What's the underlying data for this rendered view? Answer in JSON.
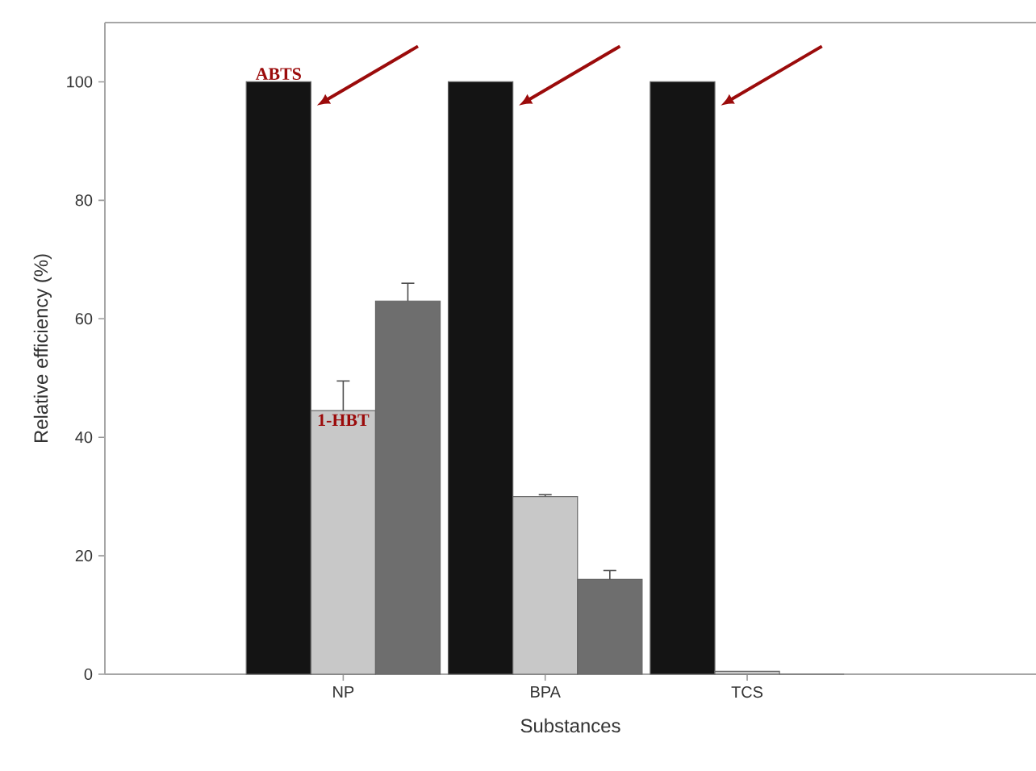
{
  "chart_data": {
    "type": "bar",
    "xlabel": "Substances",
    "ylabel": "Relative efficiency (%)",
    "categories": [
      "NP",
      "BPA",
      "TCS"
    ],
    "series": [
      {
        "name": "ABTS",
        "color": "#141414",
        "values": [
          100,
          100,
          100
        ]
      },
      {
        "name": "1-HBT",
        "color": "#c8c8c8",
        "values": [
          44.5,
          30,
          0.5
        ],
        "errors": [
          5,
          0.3,
          null
        ]
      },
      {
        "color": "#6e6e6e",
        "values": [
          63,
          16,
          0
        ],
        "errors": [
          3,
          1.5,
          null
        ]
      }
    ],
    "ylim": [
      0,
      110
    ],
    "yticks": [
      0,
      20,
      40,
      60,
      80,
      100
    ],
    "legend": false,
    "grid": false
  }
}
